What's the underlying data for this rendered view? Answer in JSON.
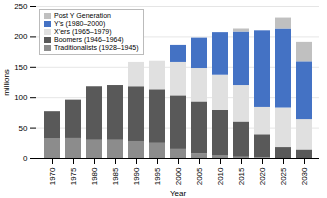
{
  "chart_data": {
    "type": "bar",
    "stacked": true,
    "x": [
      1970,
      1975,
      1980,
      1985,
      1990,
      1995,
      2000,
      2005,
      2010,
      2015,
      2020,
      2025,
      2030
    ],
    "xticks": [
      1970,
      1975,
      1980,
      1985,
      1990,
      1995,
      2000,
      2005,
      2010,
      2015,
      2020,
      2025,
      2030
    ],
    "xlabel": "Year",
    "ylabel": "millions",
    "ylim": [
      0,
      250
    ],
    "yticks": [
      0,
      50,
      100,
      150,
      200,
      250
    ],
    "grid": true,
    "legend": "upper left",
    "series": [
      {
        "name": "Traditionalists (1928–1945)",
        "color": "#8c8c8c",
        "values": [
          32,
          33,
          30,
          30,
          28,
          25,
          15,
          8,
          4,
          2,
          1,
          0,
          0
        ]
      },
      {
        "name": "Boomers (1946–1964)",
        "color": "#595959",
        "values": [
          45,
          63,
          88,
          90,
          90,
          88,
          88,
          85,
          75,
          58,
          38,
          18,
          14
        ]
      },
      {
        "name": "X’ers (1965–1979)",
        "color": "#e0e0e0",
        "values": [
          0,
          0,
          0,
          0,
          40,
          47,
          55,
          55,
          58,
          60,
          45,
          65,
          50
        ]
      },
      {
        "name": "Y’s (1980–2000)",
        "color": "#4472c4",
        "values": [
          0,
          0,
          0,
          0,
          0,
          0,
          28,
          50,
          70,
          88,
          126,
          130,
          95
        ]
      },
      {
        "name": "Post Y Generation",
        "color": "#c0c0c0",
        "values": [
          0,
          0,
          0,
          0,
          0,
          0,
          0,
          0,
          0,
          5,
          0,
          18,
          32
        ]
      }
    ]
  }
}
